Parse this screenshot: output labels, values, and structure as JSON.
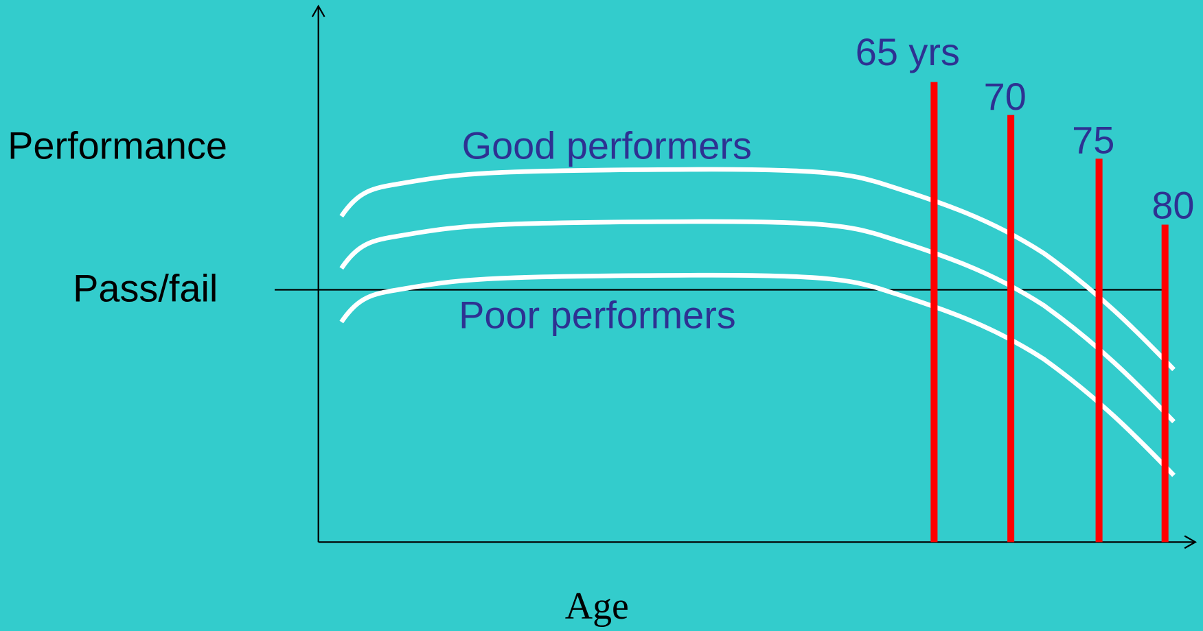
{
  "axis_label_y": "Performance",
  "threshold_label": "Pass/fail",
  "group_labels": [
    "Good performers",
    "Poor performers"
  ],
  "axis_label_x": "Age",
  "age_markers": [
    "65 yrs",
    "70",
    "75",
    "80"
  ]
}
